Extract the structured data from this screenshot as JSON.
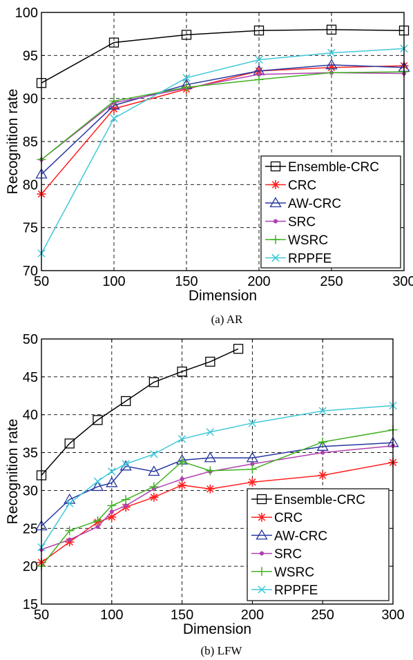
{
  "chart_data": [
    {
      "type": "line",
      "caption": "(a)  AR",
      "xlabel": "Dimension",
      "ylabel": "Recognition rate",
      "xlim": [
        50,
        300
      ],
      "ylim": [
        70,
        100
      ],
      "xticks": [
        50,
        100,
        150,
        200,
        250,
        300
      ],
      "yticks": [
        70,
        75,
        80,
        85,
        90,
        95,
        100
      ],
      "grid": true,
      "legend_position": "bottom-right",
      "x": [
        50,
        100,
        150,
        200,
        250,
        300
      ],
      "series": [
        {
          "name": "Ensemble-CRC",
          "color": "#000000",
          "marker": "square",
          "values": [
            91.8,
            96.5,
            97.4,
            97.9,
            98.0,
            97.9
          ]
        },
        {
          "name": "CRC",
          "color": "#ff2020",
          "marker": "asterisk",
          "values": [
            78.9,
            88.8,
            91.1,
            93.2,
            93.6,
            93.8
          ]
        },
        {
          "name": "AW-CRC",
          "color": "#2535a0",
          "marker": "triangle",
          "values": [
            81.2,
            89.2,
            91.6,
            93.2,
            93.9,
            93.6
          ]
        },
        {
          "name": "SRC",
          "color": "#b040b0",
          "marker": "dot",
          "values": [
            82.9,
            89.5,
            91.2,
            92.8,
            93.0,
            92.9
          ]
        },
        {
          "name": "WSRC",
          "color": "#40b020",
          "marker": "plus",
          "values": [
            82.9,
            89.7,
            91.3,
            92.2,
            93.0,
            93.1
          ]
        },
        {
          "name": "RPPFE",
          "color": "#40c8d8",
          "marker": "x",
          "values": [
            72.0,
            87.7,
            92.4,
            94.5,
            95.3,
            95.8
          ]
        }
      ]
    },
    {
      "type": "line",
      "caption": "(b)  LFW",
      "xlabel": "Dimension",
      "ylabel": "Recognition rate",
      "xlim": [
        50,
        300
      ],
      "ylim": [
        15,
        50
      ],
      "xticks": [
        50,
        100,
        150,
        200,
        250,
        300
      ],
      "yticks": [
        15,
        20,
        25,
        30,
        35,
        40,
        45,
        50
      ],
      "grid": true,
      "legend_position": "bottom-right",
      "series": [
        {
          "name": "Ensemble-CRC",
          "color": "#000000",
          "marker": "square",
          "x": [
            50,
            70,
            90,
            110,
            130,
            150,
            170,
            190
          ],
          "values": [
            32.0,
            36.2,
            39.3,
            41.8,
            44.3,
            45.7,
            47.0,
            48.7
          ]
        },
        {
          "name": "CRC",
          "color": "#ff2020",
          "marker": "asterisk",
          "x": [
            50,
            70,
            90,
            100,
            110,
            130,
            150,
            170,
            200,
            250,
            300
          ],
          "values": [
            20.5,
            23.2,
            25.8,
            26.5,
            27.8,
            29.1,
            30.7,
            30.2,
            31.1,
            32.0,
            33.7
          ]
        },
        {
          "name": "AW-CRC",
          "color": "#2535a0",
          "marker": "triangle",
          "x": [
            50,
            70,
            90,
            100,
            110,
            130,
            150,
            170,
            200,
            250,
            300
          ],
          "values": [
            25.3,
            28.8,
            30.5,
            31.0,
            33.2,
            32.5,
            34.0,
            34.3,
            34.3,
            35.8,
            36.3
          ]
        },
        {
          "name": "SRC",
          "color": "#b040b0",
          "marker": "dot",
          "x": [
            50,
            70,
            90,
            100,
            110,
            130,
            150,
            170,
            200,
            250,
            300
          ],
          "values": [
            22.2,
            23.5,
            25.2,
            27.2,
            28.0,
            30.2,
            31.5,
            32.5,
            33.5,
            35.0,
            35.9
          ]
        },
        {
          "name": "WSRC",
          "color": "#40b020",
          "marker": "plus",
          "x": [
            50,
            70,
            90,
            100,
            110,
            130,
            150,
            170,
            200,
            250,
            300
          ],
          "values": [
            20.0,
            24.7,
            26.0,
            28.0,
            28.8,
            30.5,
            33.8,
            32.6,
            32.8,
            36.4,
            38.0
          ]
        },
        {
          "name": "RPPFE",
          "color": "#40c8d8",
          "marker": "x",
          "x": [
            50,
            70,
            90,
            100,
            110,
            130,
            150,
            170,
            200,
            250,
            300
          ],
          "values": [
            22.5,
            28.3,
            31.2,
            32.5,
            33.5,
            34.8,
            36.8,
            37.7,
            38.9,
            40.5,
            41.2
          ]
        }
      ]
    }
  ]
}
